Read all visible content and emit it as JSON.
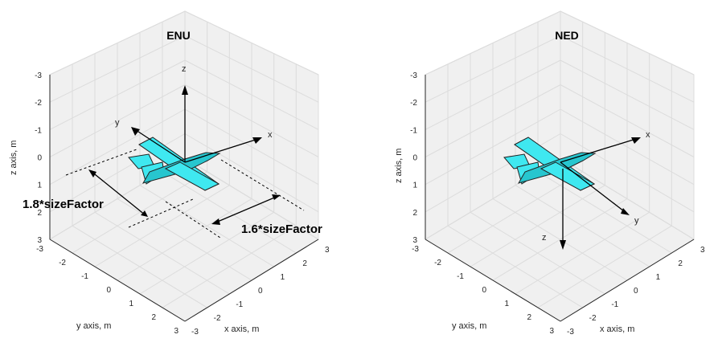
{
  "chart_data": [
    {
      "type": "3d-axes",
      "title": "ENU",
      "xlabel": "x axis, m",
      "ylabel": "y axis, m",
      "zlabel": "z axis, m",
      "x_ticks": [
        "-3",
        "-2",
        "-1",
        "0",
        "1",
        "2",
        "3"
      ],
      "y_ticks": [
        "-3",
        "-2",
        "-1",
        "0",
        "1",
        "2",
        "3"
      ],
      "z_ticks": [
        "-3",
        "-2",
        "-1",
        "0",
        "1",
        "2",
        "3"
      ],
      "xlim": [
        -3,
        3
      ],
      "ylim": [
        -3,
        3
      ],
      "zlim": [
        -3,
        3
      ],
      "zdir": "reverse",
      "grid": true,
      "axis_arrows": [
        "x",
        "y",
        "z"
      ],
      "annotations": [
        "1.8*sizeFactor",
        "1.6*sizeFactor"
      ]
    },
    {
      "type": "3d-axes",
      "title": "NED",
      "xlabel": "x axis, m",
      "ylabel": "y axis, m",
      "zlabel": "z axis, m",
      "x_ticks": [
        "-3",
        "-2",
        "-1",
        "0",
        "1",
        "2",
        "3"
      ],
      "y_ticks": [
        "-3",
        "-2",
        "-1",
        "0",
        "1",
        "2",
        "3"
      ],
      "z_ticks": [
        "-3",
        "-2",
        "-1",
        "0",
        "1",
        "2",
        "3"
      ],
      "xlim": [
        -3,
        3
      ],
      "ylim": [
        -3,
        3
      ],
      "zlim": [
        -3,
        3
      ],
      "zdir": "reverse",
      "grid": true,
      "axis_arrows": [
        "x",
        "y",
        "z"
      ]
    }
  ],
  "colors": {
    "aircraft": "#3fe8f0",
    "axes_box": "#f0f0f0",
    "grid": "#dcdcdc"
  }
}
